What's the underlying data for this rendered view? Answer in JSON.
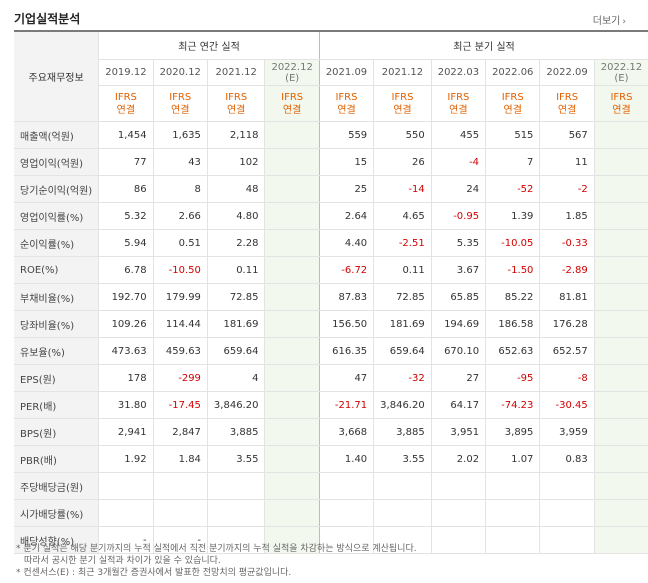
{
  "header": {
    "title": "기업실적분석",
    "more_label": "더보기"
  },
  "table": {
    "row_header_label": "주요재무정보",
    "groups": [
      {
        "label": "최근 연간 실적"
      },
      {
        "label": "최근 분기 실적"
      }
    ],
    "periods": [
      {
        "label": "2019.12",
        "sub": "",
        "basis_line1": "IFRS",
        "basis_line2": "연결"
      },
      {
        "label": "2020.12",
        "sub": "",
        "basis_line1": "IFRS",
        "basis_line2": "연결"
      },
      {
        "label": "2021.12",
        "sub": "",
        "basis_line1": "IFRS",
        "basis_line2": "연결"
      },
      {
        "label": "2022.12",
        "sub": "(E)",
        "basis_line1": "IFRS",
        "basis_line2": "연결"
      },
      {
        "label": "2021.09",
        "sub": "",
        "basis_line1": "IFRS",
        "basis_line2": "연결"
      },
      {
        "label": "2021.12",
        "sub": "",
        "basis_line1": "IFRS",
        "basis_line2": "연결"
      },
      {
        "label": "2022.03",
        "sub": "",
        "basis_line1": "IFRS",
        "basis_line2": "연결"
      },
      {
        "label": "2022.06",
        "sub": "",
        "basis_line1": "IFRS",
        "basis_line2": "연결"
      },
      {
        "label": "2022.09",
        "sub": "",
        "basis_line1": "IFRS",
        "basis_line2": "연결"
      },
      {
        "label": "2022.12",
        "sub": "(E)",
        "basis_line1": "IFRS",
        "basis_line2": "연결"
      }
    ],
    "rows": [
      {
        "label": "매출액(억원)",
        "values": [
          "1,454",
          "1,635",
          "2,118",
          "",
          "559",
          "550",
          "455",
          "515",
          "567",
          ""
        ]
      },
      {
        "label": "영업이익(억원)",
        "values": [
          "77",
          "43",
          "102",
          "",
          "15",
          "26",
          "-4",
          "7",
          "11",
          ""
        ]
      },
      {
        "label": "당기순이익(억원)",
        "values": [
          "86",
          "8",
          "48",
          "",
          "25",
          "-14",
          "24",
          "-52",
          "-2",
          ""
        ]
      },
      {
        "label": "영업이익률(%)",
        "values": [
          "5.32",
          "2.66",
          "4.80",
          "",
          "2.64",
          "4.65",
          "-0.95",
          "1.39",
          "1.85",
          ""
        ]
      },
      {
        "label": "순이익률(%)",
        "values": [
          "5.94",
          "0.51",
          "2.28",
          "",
          "4.40",
          "-2.51",
          "5.35",
          "-10.05",
          "-0.33",
          ""
        ]
      },
      {
        "label": "ROE(%)",
        "values": [
          "6.78",
          "-10.50",
          "0.11",
          "",
          "-6.72",
          "0.11",
          "3.67",
          "-1.50",
          "-2.89",
          ""
        ]
      },
      {
        "label": "부채비율(%)",
        "values": [
          "192.70",
          "179.99",
          "72.85",
          "",
          "87.83",
          "72.85",
          "65.85",
          "85.22",
          "81.81",
          ""
        ]
      },
      {
        "label": "당좌비율(%)",
        "values": [
          "109.26",
          "114.44",
          "181.69",
          "",
          "156.50",
          "181.69",
          "194.69",
          "186.58",
          "176.28",
          ""
        ]
      },
      {
        "label": "유보율(%)",
        "values": [
          "473.63",
          "459.63",
          "659.64",
          "",
          "616.35",
          "659.64",
          "670.10",
          "652.63",
          "652.57",
          ""
        ]
      },
      {
        "label": "EPS(원)",
        "values": [
          "178",
          "-299",
          "4",
          "",
          "47",
          "-32",
          "27",
          "-95",
          "-8",
          ""
        ]
      },
      {
        "label": "PER(배)",
        "values": [
          "31.80",
          "-17.45",
          "3,846.20",
          "",
          "-21.71",
          "3,846.20",
          "64.17",
          "-74.23",
          "-30.45",
          ""
        ]
      },
      {
        "label": "BPS(원)",
        "values": [
          "2,941",
          "2,847",
          "3,885",
          "",
          "3,668",
          "3,885",
          "3,951",
          "3,895",
          "3,959",
          ""
        ]
      },
      {
        "label": "PBR(배)",
        "values": [
          "1.92",
          "1.84",
          "3.55",
          "",
          "1.40",
          "3.55",
          "2.02",
          "1.07",
          "0.83",
          ""
        ]
      },
      {
        "label": "주당배당금(원)",
        "values": [
          "",
          "",
          "",
          "",
          "",
          "",
          "",
          "",
          "",
          ""
        ]
      },
      {
        "label": "시가배당률(%)",
        "values": [
          "",
          "",
          "",
          "",
          "",
          "",
          "",
          "",
          "",
          ""
        ]
      },
      {
        "label": "배당성향(%)",
        "values": [
          "-",
          "-",
          "",
          "",
          "",
          "",
          "",
          "",
          "",
          ""
        ]
      }
    ]
  },
  "notes": [
    "* 분기 실적은 해당 분기까지의 누적 실적에서 직전 분기까지의 누적 실적을 차감하는 방식으로 계산됩니다.",
    "따라서 공시한 분기 실적과 차이가 있을 수 있습니다.",
    "* 컨센서스(E) : 최근 3개월간 증권사에서 발표한 전망치의 평균값입니다."
  ]
}
